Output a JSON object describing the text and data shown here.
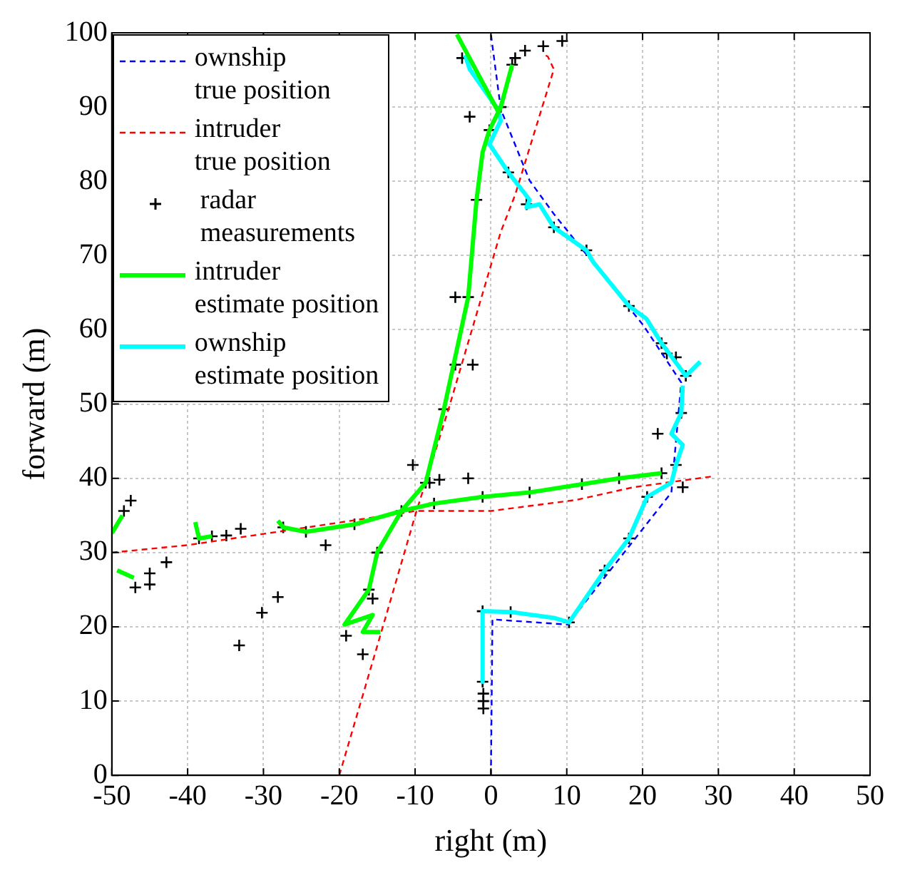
{
  "chart_data": {
    "type": "line",
    "xlabel": "right (m)",
    "ylabel": "forward (m)",
    "xlim": [
      -50,
      50
    ],
    "ylim": [
      0,
      100
    ],
    "xticks": [
      -50,
      -40,
      -30,
      -20,
      -10,
      0,
      10,
      20,
      30,
      40,
      50
    ],
    "yticks": [
      0,
      10,
      20,
      30,
      40,
      50,
      60,
      70,
      80,
      90,
      100
    ],
    "grid": true,
    "legend": "top left",
    "series": [
      {
        "name": "ownship true position",
        "color": "#0000ff",
        "line_style": "dashed",
        "x": [
          0,
          0.2,
          10.1,
          23.8,
          25.1,
          20.1,
          8.3,
          5.1,
          1.3,
          0
        ],
        "values": [
          0,
          21,
          20.3,
          38.1,
          52.9,
          60.6,
          75.6,
          80.1,
          89.7,
          99.8
        ]
      },
      {
        "name": "intruder true position",
        "color": "#ff0000",
        "line_style": "dashed",
        "x": [
          -20,
          -14.6,
          -9.9,
          -5.6,
          1.3,
          3.2,
          8.3,
          7.5,
          6.8,
          null,
          -50,
          -40,
          -28.1,
          -9.9,
          0,
          11.3,
          18.8,
          29.5
        ],
        "values": [
          0,
          18.8,
          35.3,
          49.3,
          73.2,
          78.2,
          95.1,
          96.8,
          97.2,
          null,
          30,
          31,
          32.8,
          35.6,
          35.6,
          37.1,
          38.8,
          40.3
        ]
      },
      {
        "name": "radar measurements",
        "type": "scatter",
        "color": "#000000",
        "marker": "cross",
        "x": [
          -33.2,
          -21.8,
          -19.1,
          -30.2,
          -28.1,
          -42.8,
          -45,
          -45,
          -46.9,
          -47.5,
          -48.4,
          -33,
          -34.9,
          -16.9,
          -15.6,
          -10.3,
          -8.1,
          -3,
          -6.8,
          22,
          25.3,
          -2.4,
          -4.7,
          -4.7,
          9.4,
          -2.8,
          -3.8,
          4.5,
          3.2,
          6.9,
          24.4,
          23.2,
          4.7,
          -1,
          -1,
          -1,
          -1.1,
          2.8,
          1.3,
          -0.2,
          -1.9,
          -3,
          -6.2,
          -8.6,
          -11.8,
          -15,
          -16.1,
          -27.4,
          -24.4,
          -18,
          -7.5,
          -1.1,
          5.1,
          12,
          16.9,
          22.5,
          2.3,
          8.3,
          12.6,
          18.2,
          22.5,
          25.7,
          25.1,
          24.4,
          20.6,
          18.2,
          15,
          10.3,
          2.6,
          -1.1,
          -38.5,
          -36.8
        ],
        "values": [
          17.5,
          31,
          18.8,
          21.9,
          24,
          28.7,
          25.7,
          27.2,
          25.3,
          37,
          35.6,
          33.2,
          32.3,
          16.3,
          23.8,
          41.8,
          39.4,
          40,
          39.8,
          46,
          38.8,
          55.3,
          55.3,
          64.4,
          98.9,
          88.7,
          96.6,
          97.6,
          96.6,
          98.2,
          56.3,
          56.8,
          76.9,
          9,
          10,
          11,
          12.6,
          95.7,
          90,
          86.9,
          77.5,
          64.4,
          49.3,
          39.4,
          35.6,
          30,
          25,
          33.4,
          32.8,
          33.8,
          36.6,
          37.5,
          38.1,
          39.2,
          40,
          40.7,
          81.2,
          73.8,
          70.7,
          63.2,
          58.2,
          53.8,
          48.8,
          41.8,
          37.5,
          31.9,
          27.6,
          20.6,
          22,
          22.1,
          31.9,
          32.2
        ]
      },
      {
        "name": "intruder estimate position",
        "color": "#00ff00",
        "line_style": "solid",
        "x": [
          -4.5,
          0.9,
          null,
          2.8,
          1.3,
          -0.2,
          -1.1,
          -1.9,
          -3,
          -6.2,
          -8.6,
          -11.8,
          -15,
          -16.1,
          -19.3,
          -15.6,
          -16.9,
          -14.6,
          null,
          -28.1,
          -27.4,
          -24.4,
          -18,
          -11.8,
          -7.5,
          -1.1,
          5.1,
          12,
          16.9,
          22.5,
          null,
          -39,
          -38.5,
          -36.8,
          null,
          -50,
          -48.6,
          null,
          -49.3,
          -47.1
        ],
        "values": [
          99.8,
          89.5,
          null,
          95.7,
          90,
          86.9,
          83.9,
          77.5,
          64.4,
          49.3,
          39.4,
          35.6,
          30,
          25,
          20.3,
          21.6,
          19.3,
          19.3,
          null,
          34.3,
          33.4,
          32.8,
          33.8,
          35.6,
          36.6,
          37.5,
          38.1,
          39.2,
          40,
          40.7,
          null,
          34.1,
          31.9,
          32.2,
          null,
          32.6,
          35,
          null,
          27.6,
          26.6
        ]
      },
      {
        "name": "ownship estimate position",
        "color": "#00ffff",
        "line_style": "solid",
        "x": [
          -3.4,
          -2.8,
          0.9,
          1.3,
          -0.2,
          2.3,
          5.1,
          4.7,
          6.4,
          8.3,
          12.6,
          13.5,
          18.2,
          20.5,
          22.5,
          25.7,
          27.6,
          null,
          25.3,
          25.1,
          23.8,
          25.3,
          24.4,
          23.8,
          20.6,
          18.2,
          15,
          10.3,
          8.3,
          2.6,
          -1.1,
          -1.1
        ],
        "values": [
          97,
          95.1,
          89.7,
          88.2,
          85,
          81.2,
          77.5,
          76.5,
          76.9,
          73.8,
          70.7,
          69.1,
          63.2,
          61.5,
          58.2,
          53.8,
          55.7,
          null,
          52.5,
          48.8,
          46,
          44.5,
          41.8,
          39.4,
          37.5,
          31.9,
          27.6,
          20.6,
          21.2,
          22,
          22.1,
          12.6
        ]
      }
    ]
  }
}
